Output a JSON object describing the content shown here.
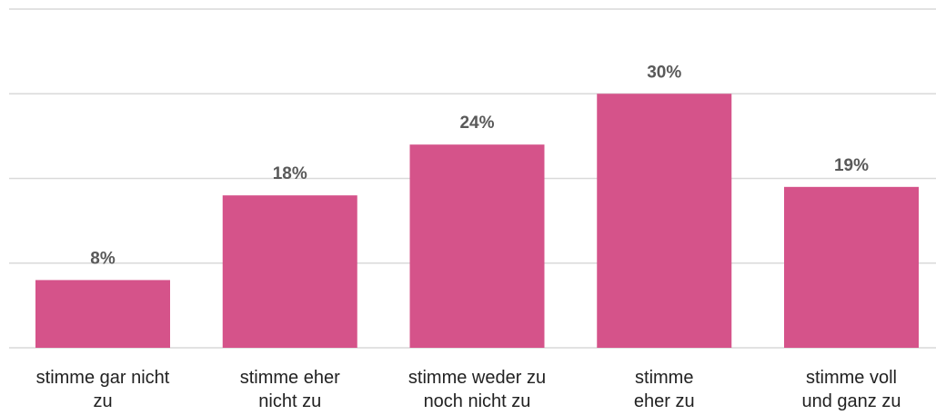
{
  "chart_data": {
    "type": "bar",
    "categories": [
      "stimme gar nicht\nzu",
      "stimme eher\nnicht zu",
      "stimme weder zu\nnoch nicht zu",
      "stimme\neher zu",
      "stimme voll\nund ganz zu"
    ],
    "values": [
      8,
      18,
      24,
      30,
      19
    ],
    "value_labels": [
      "8%",
      "18%",
      "24%",
      "30%",
      "19%"
    ],
    "color": "#d5538a",
    "ylim": [
      0,
      40
    ],
    "yticks": [
      0,
      10,
      20,
      30,
      40
    ],
    "grid": true
  }
}
